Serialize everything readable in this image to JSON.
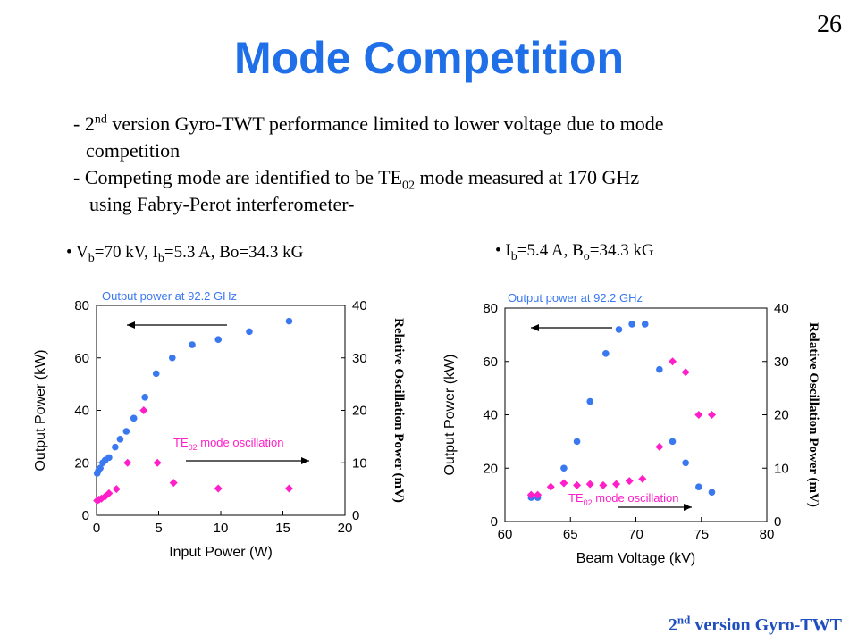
{
  "slide_number": "26",
  "title": "Mode Competition",
  "bullets": {
    "b1_prefix": "- 2",
    "b1_sup": "nd",
    "b1_rest": " version Gyro-TWT performance limited to lower voltage due to mode",
    "b1_cont": "competition",
    "b2": "- Competing mode are identified to be TE",
    "b2_sub": "02",
    "b2_rest": " mode measured at 170 GHz",
    "b2_cont": "using Fabry-Perot interferometer-"
  },
  "captions": {
    "left": {
      "p1": "• V",
      "s1": "b",
      "p2": "=70 kV, I",
      "s2": "b",
      "p3": "=5.3 A, Bo=34.3 kG"
    },
    "right": {
      "p1": "• I",
      "s1": "b",
      "p2": "=5.4 A, B",
      "s2": "o",
      "p3": "=34.3 kG"
    }
  },
  "footer": {
    "prefix": "2",
    "sup": "nd",
    "rest": " version Gyro-TWT"
  },
  "colors": {
    "title": "#1f6fe8",
    "blue_series": "#3a78f0",
    "magenta_series": "#ff1ec8",
    "footer": "#1f4fbf"
  },
  "chart_data": [
    {
      "type": "scatter",
      "xlabel": "Input Power (W)",
      "ylabel": "Output Power (kW)",
      "y2label": "Relative Oscillation Power (mV)",
      "xlim": [
        0,
        20
      ],
      "ylim": [
        0,
        80
      ],
      "y2lim": [
        0,
        40
      ],
      "xticks": [
        "0",
        "5",
        "10",
        "15",
        "20"
      ],
      "yticks": [
        "0",
        "20",
        "40",
        "60",
        "80"
      ],
      "y2ticks": [
        "0",
        "10",
        "20",
        "30",
        "40"
      ],
      "grid": false,
      "annotations": {
        "blue": "Output power at 92.2 GHz",
        "magenta_pre": "TE",
        "magenta_sub": "02",
        "magenta_post": " mode oscillation"
      },
      "series": [
        {
          "axis": "left",
          "color": "#3a78f0",
          "marker": "circle",
          "x": [
            0.05,
            0.15,
            0.3,
            0.5,
            0.7,
            1.0,
            1.5,
            1.9,
            2.4,
            3.0,
            3.9,
            4.8,
            6.1,
            7.7,
            9.8,
            12.3,
            15.5
          ],
          "y": [
            16,
            17,
            18,
            20,
            21,
            22,
            26,
            29,
            32,
            37,
            45,
            54,
            60,
            65,
            67,
            70,
            74
          ]
        },
        {
          "axis": "right",
          "color": "#ff1ec8",
          "marker": "diamond",
          "x": [
            0.05,
            0.2,
            0.4,
            0.7,
            1.0,
            1.6,
            2.5,
            3.8,
            4.9,
            6.2,
            9.8,
            15.5
          ],
          "y": [
            2.8,
            3.0,
            3.2,
            3.6,
            4.2,
            5.0,
            10,
            20,
            10,
            6.2,
            5.1,
            5.1
          ]
        }
      ]
    },
    {
      "type": "scatter",
      "xlabel": "Beam Voltage (kV)",
      "ylabel": "Output Power (kW)",
      "y2label": "Relative Oscillation Power (mV)",
      "xlim": [
        60,
        80
      ],
      "ylim": [
        0,
        80
      ],
      "y2lim": [
        0,
        40
      ],
      "xticks": [
        "60",
        "65",
        "70",
        "75",
        "80"
      ],
      "yticks": [
        "0",
        "20",
        "40",
        "60",
        "80"
      ],
      "y2ticks": [
        "0",
        "10",
        "20",
        "30",
        "40"
      ],
      "grid": false,
      "annotations": {
        "blue": "Output power at 92.2 GHz",
        "magenta_pre": "TE",
        "magenta_sub": "02",
        "magenta_post": " mode oscillation"
      },
      "series": [
        {
          "axis": "left",
          "color": "#3a78f0",
          "marker": "circle",
          "x": [
            62.0,
            62.5,
            64.5,
            65.5,
            66.5,
            67.7,
            68.7,
            69.7,
            70.7,
            71.8,
            72.8,
            73.8,
            74.8,
            75.8
          ],
          "y": [
            9,
            9,
            20,
            30,
            45,
            63,
            72,
            74,
            74,
            57,
            30,
            22,
            13,
            11
          ]
        },
        {
          "axis": "right",
          "color": "#ff1ec8",
          "marker": "diamond",
          "x": [
            62.0,
            62.5,
            63.5,
            64.5,
            65.5,
            66.5,
            67.5,
            68.5,
            69.5,
            70.5,
            71.8,
            72.8,
            73.8,
            74.8,
            75.8
          ],
          "y": [
            5,
            5,
            6.5,
            7.2,
            6.8,
            7.0,
            6.8,
            7.0,
            7.6,
            8.0,
            14,
            30,
            28,
            20,
            20
          ]
        }
      ]
    }
  ]
}
